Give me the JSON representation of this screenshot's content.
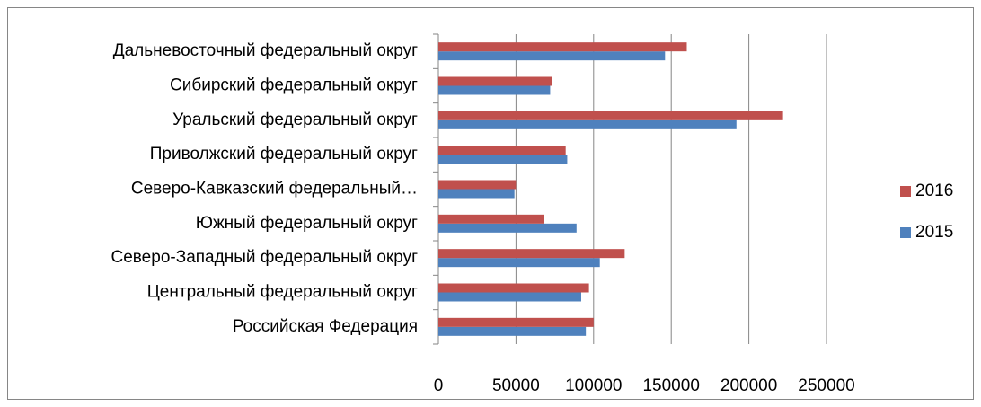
{
  "chart_data": {
    "type": "bar",
    "orientation": "horizontal",
    "categories": [
      "Российская Федерация",
      "Центральный федеральный округ",
      "Северо-Западный федеральный округ",
      "Южный федеральный округ",
      "Северо-Кавказский федеральный…",
      "Приволжский федеральный округ",
      "Уральский федеральный округ",
      "Сибирский федеральный округ",
      "Дальневосточный федеральный округ"
    ],
    "series": [
      {
        "name": "2015",
        "color": "#4f81bd",
        "values": [
          95000,
          92000,
          104000,
          89000,
          49000,
          83000,
          192000,
          72000,
          146000
        ]
      },
      {
        "name": "2016",
        "color": "#c0504d",
        "values": [
          100000,
          97000,
          120000,
          68000,
          50000,
          82000,
          222000,
          73000,
          160000
        ]
      }
    ],
    "xlim": [
      0,
      250000
    ],
    "xticks": [
      0,
      50000,
      100000,
      150000,
      200000,
      250000
    ],
    "grid": true,
    "legend": "right"
  }
}
